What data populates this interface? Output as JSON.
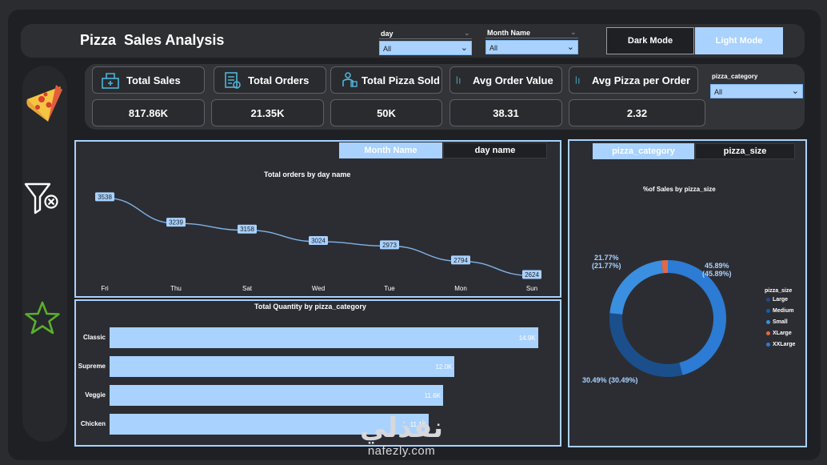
{
  "header": {
    "title": "Pizza  Sales Analysis",
    "slicers": [
      {
        "label": "day",
        "value": "All"
      },
      {
        "label": "Month Name",
        "value": "All"
      }
    ],
    "dark_mode_label": "Dark Mode",
    "light_mode_label": "Light Mode"
  },
  "kpis": [
    {
      "label": "Total Sales",
      "value": "817.86K",
      "icon": "sales-icon"
    },
    {
      "label": "Total Orders",
      "value": "21.35K",
      "icon": "orders-icon"
    },
    {
      "label": "Total Pizza Sold",
      "value": "50K",
      "icon": "delivery-icon"
    },
    {
      "label": "Avg Order Value",
      "value": "38.31",
      "icon": "value-icon"
    },
    {
      "label": "Avg Pizza per Order",
      "value": "2.32",
      "icon": "value-icon"
    }
  ],
  "category_slicer": {
    "label": "pizza_category",
    "value": "All"
  },
  "sidebar": {
    "icons": [
      "pizza-icon",
      "filter-clear-icon",
      "star-icon"
    ]
  },
  "line_panel": {
    "tabs": [
      {
        "label": "Month Name",
        "active": true
      },
      {
        "label": "day name",
        "active": false
      }
    ]
  },
  "pie_panel": {
    "tabs": [
      {
        "label": "pizza_category",
        "active": true
      },
      {
        "label": "pizza_size",
        "active": false
      }
    ]
  },
  "colors": {
    "accent": "#a9d2ff",
    "line": "#7fb3e6",
    "large": "#1b4f8c",
    "medium": "#0f5fb0",
    "small": "#3a8fe0",
    "xlarge": "#e06a46",
    "xxlarge": "#2c7bd4"
  },
  "watermark": {
    "arabic": "نفذلي",
    "latin": "nafezly.com"
  },
  "chart_data": [
    {
      "type": "line",
      "title": "Total orders by day name",
      "categories": [
        "Fri",
        "Thu",
        "Sat",
        "Wed",
        "Tue",
        "Mon",
        "Sun"
      ],
      "values": [
        3538,
        3239,
        3158,
        3024,
        2973,
        2794,
        2624
      ],
      "data_labels": [
        "3538",
        "3239",
        "3158",
        "3024",
        "2973",
        "2794",
        "2624"
      ],
      "ylim": [
        2600,
        3560
      ]
    },
    {
      "type": "bar",
      "orientation": "horizontal",
      "title": "Total Quantity by pizza_category",
      "categories": [
        "Classic",
        "Supreme",
        "Veggie",
        "Chicken"
      ],
      "values": [
        14.9,
        12.0,
        11.6,
        11.1
      ],
      "data_labels": [
        "14.9K",
        "12.0K",
        "11.6K",
        "11.1K"
      ],
      "xlim": [
        0,
        15.3
      ]
    },
    {
      "type": "pie",
      "donut": true,
      "title": "%of Sales by pizza_size",
      "legend_title": "pizza_size",
      "legend_position": "right",
      "slices": [
        {
          "name": "Large",
          "value": 30.49,
          "label": "30.49% (30.49%)"
        },
        {
          "name": "Medium",
          "value": 0,
          "label": ""
        },
        {
          "name": "Small",
          "value": 21.77,
          "label": "21.77%\n(21.77%)"
        },
        {
          "name": "XLarge",
          "value": 1.72,
          "label": ""
        },
        {
          "name": "XXLarge",
          "value": 45.89,
          "label": "45.89%\n(45.89%)"
        }
      ]
    }
  ]
}
